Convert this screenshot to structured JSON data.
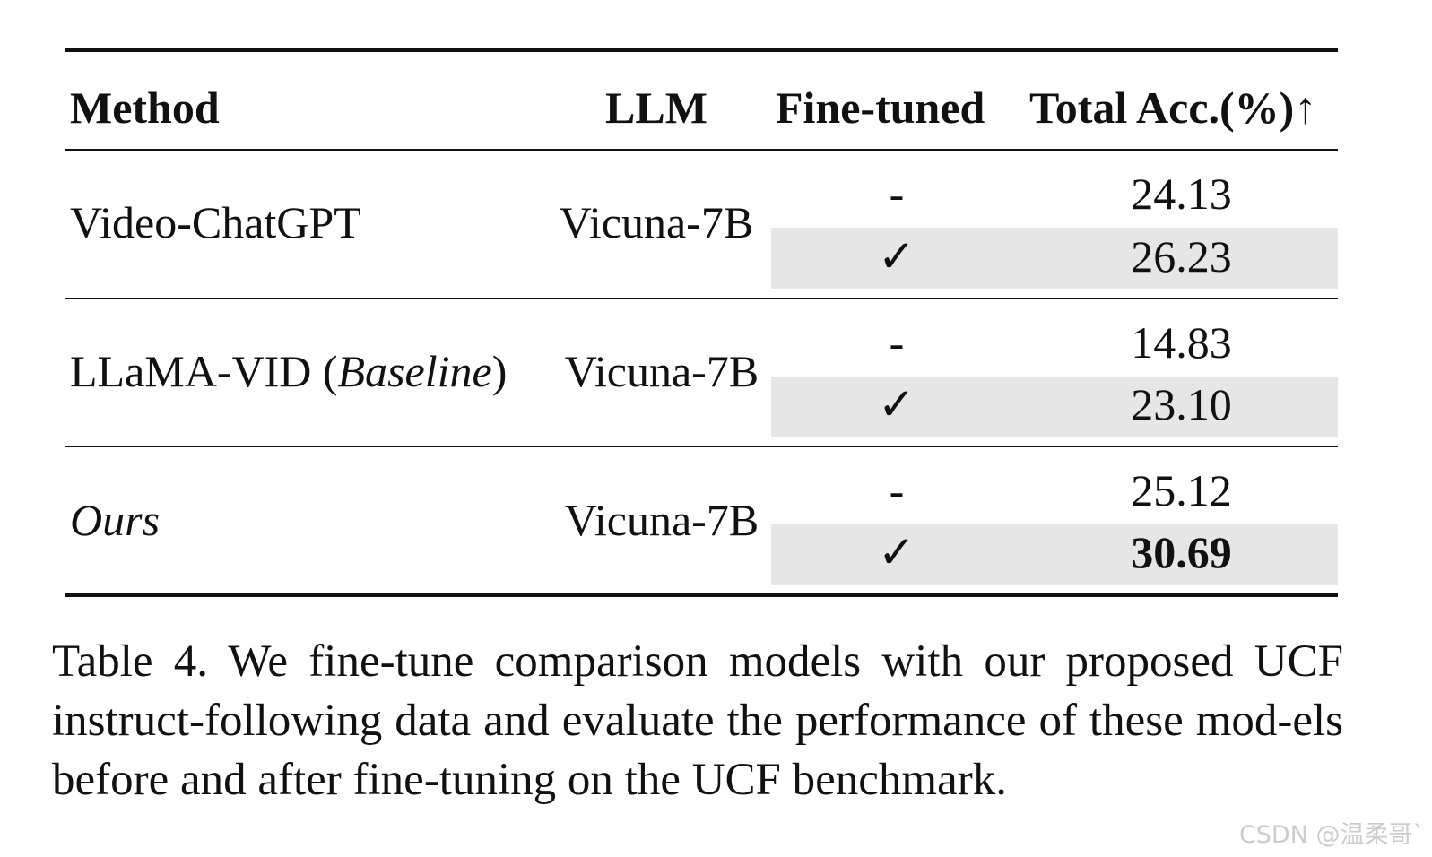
{
  "table": {
    "headers": {
      "method": "Method",
      "llm": "LLM",
      "fine_tuned": "Fine-tuned",
      "total_acc": "Total Acc.(%)↑"
    },
    "rows": [
      {
        "method": "Video-ChatGPT",
        "llm": "Vicuna-7B",
        "sub": [
          {
            "fine_tuned": "-",
            "acc": "24.13"
          },
          {
            "fine_tuned": "✓",
            "acc": "26.23"
          }
        ]
      },
      {
        "method_main": "LLaMA-VID (",
        "method_italic": "Baseline",
        "method_close": ")",
        "llm": "Vicuna-7B",
        "sub": [
          {
            "fine_tuned": "-",
            "acc": "14.83"
          },
          {
            "fine_tuned": "✓",
            "acc": "23.10"
          }
        ]
      },
      {
        "method": "Ours",
        "llm": "Vicuna-7B",
        "sub": [
          {
            "fine_tuned": "-",
            "acc": "25.12"
          },
          {
            "fine_tuned": "✓",
            "acc": "30.69"
          }
        ]
      }
    ],
    "highlight_color": "#e6e6e6"
  },
  "caption": "Table 4. We fine-tune comparison models with our proposed UCF instruct-following data and evaluate the performance of these mod-els before and after fine-tuning on the UCF benchmark.",
  "watermark": "CSDN @温柔哥`"
}
